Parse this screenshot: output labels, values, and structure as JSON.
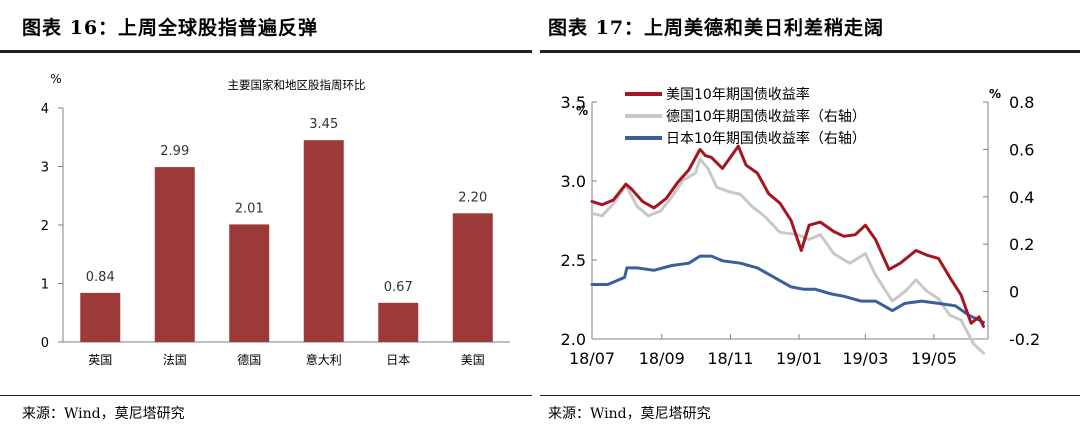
{
  "left_panel": {
    "figure_title": "图表 16：上周全球股指普遍反弹",
    "source": "来源：Wind，莫尼塔研究"
  },
  "right_panel": {
    "figure_title": "图表 17：上周美德和美日利差稍走阔",
    "source": "来源：Wind，莫尼塔研究"
  },
  "chart_data": [
    {
      "type": "bar",
      "title": "主要国家和地区股指周环比",
      "ylabel": "%",
      "ylim": [
        0,
        4
      ],
      "yticks": [
        "0",
        "1",
        "2",
        "3",
        "4"
      ],
      "categories": [
        "英国",
        "法国",
        "德国",
        "意大利",
        "日本",
        "美国"
      ],
      "values": [
        0.84,
        2.99,
        2.01,
        3.45,
        0.67,
        2.2
      ],
      "value_labels": [
        "0.84",
        "2.99",
        "2.01",
        "3.45",
        "0.67",
        "2.20"
      ],
      "bar_color": "#9c3a3a",
      "grid": false
    },
    {
      "type": "line",
      "ylabel_left": "%",
      "ylabel_right": "%",
      "ylim_left": [
        2.0,
        3.5
      ],
      "ylim_right": [
        -0.2,
        0.8
      ],
      "yticks_left": [
        "2.0",
        "2.5",
        "3.0",
        "3.5"
      ],
      "yticks_right": [
        "-0.2",
        "0",
        "0.2",
        "0.4",
        "0.6",
        "0.8"
      ],
      "xticks": [
        "18/07",
        "18/09",
        "18/11",
        "19/01",
        "19/03",
        "19/05"
      ],
      "legend_position": "top-left",
      "grid": false,
      "series": [
        {
          "name": "美国10年期国债收益率",
          "axis": "left",
          "color": "#a31621",
          "points": [
            [
              "2018-07-01",
              2.87
            ],
            [
              "2018-07-10",
              2.85
            ],
            [
              "2018-07-20",
              2.88
            ],
            [
              "2018-07-31",
              2.98
            ],
            [
              "2018-08-05",
              2.95
            ],
            [
              "2018-08-15",
              2.87
            ],
            [
              "2018-08-25",
              2.83
            ],
            [
              "2018-09-05",
              2.89
            ],
            [
              "2018-09-15",
              2.99
            ],
            [
              "2018-09-25",
              3.07
            ],
            [
              "2018-10-05",
              3.2
            ],
            [
              "2018-10-10",
              3.16
            ],
            [
              "2018-10-15",
              3.15
            ],
            [
              "2018-10-25",
              3.08
            ],
            [
              "2018-11-01",
              3.15
            ],
            [
              "2018-11-08",
              3.22
            ],
            [
              "2018-11-15",
              3.1
            ],
            [
              "2018-11-25",
              3.05
            ],
            [
              "2018-12-05",
              2.92
            ],
            [
              "2018-12-15",
              2.86
            ],
            [
              "2018-12-25",
              2.75
            ],
            [
              "2019-01-03",
              2.56
            ],
            [
              "2019-01-10",
              2.72
            ],
            [
              "2019-01-20",
              2.74
            ],
            [
              "2019-02-01",
              2.68
            ],
            [
              "2019-02-10",
              2.65
            ],
            [
              "2019-02-20",
              2.66
            ],
            [
              "2019-03-01",
              2.72
            ],
            [
              "2019-03-10",
              2.63
            ],
            [
              "2019-03-22",
              2.44
            ],
            [
              "2019-04-01",
              2.48
            ],
            [
              "2019-04-15",
              2.56
            ],
            [
              "2019-04-25",
              2.53
            ],
            [
              "2019-05-05",
              2.51
            ],
            [
              "2019-05-15",
              2.39
            ],
            [
              "2019-05-25",
              2.28
            ],
            [
              "2019-06-03",
              2.1
            ],
            [
              "2019-06-10",
              2.14
            ],
            [
              "2019-06-14",
              2.08
            ]
          ]
        },
        {
          "name": "德国10年期国债收益率（右轴）",
          "axis": "right",
          "color": "#c8c8c8",
          "points": [
            [
              "2018-07-01",
              0.33
            ],
            [
              "2018-07-10",
              0.32
            ],
            [
              "2018-07-20",
              0.37
            ],
            [
              "2018-07-31",
              0.45
            ],
            [
              "2018-08-10",
              0.36
            ],
            [
              "2018-08-20",
              0.32
            ],
            [
              "2018-08-31",
              0.34
            ],
            [
              "2018-09-10",
              0.4
            ],
            [
              "2018-09-20",
              0.47
            ],
            [
              "2018-10-01",
              0.5
            ],
            [
              "2018-10-05",
              0.56
            ],
            [
              "2018-10-12",
              0.52
            ],
            [
              "2018-10-20",
              0.44
            ],
            [
              "2018-11-01",
              0.42
            ],
            [
              "2018-11-10",
              0.41
            ],
            [
              "2018-11-20",
              0.36
            ],
            [
              "2018-12-01",
              0.32
            ],
            [
              "2018-12-15",
              0.25
            ],
            [
              "2018-12-31",
              0.24
            ],
            [
              "2019-01-10",
              0.22
            ],
            [
              "2019-01-20",
              0.24
            ],
            [
              "2019-02-01",
              0.16
            ],
            [
              "2019-02-15",
              0.12
            ],
            [
              "2019-03-01",
              0.16
            ],
            [
              "2019-03-10",
              0.07
            ],
            [
              "2019-03-25",
              -0.04
            ],
            [
              "2019-04-05",
              0.0
            ],
            [
              "2019-04-15",
              0.05
            ],
            [
              "2019-04-25",
              0.0
            ],
            [
              "2019-05-05",
              -0.03
            ],
            [
              "2019-05-15",
              -0.1
            ],
            [
              "2019-05-25",
              -0.12
            ],
            [
              "2019-06-05",
              -0.22
            ],
            [
              "2019-06-14",
              -0.26
            ]
          ]
        },
        {
          "name": "日本10年期国债收益率（右轴）",
          "axis": "right",
          "color": "#3b5f9a",
          "points": [
            [
              "2018-07-01",
              0.03
            ],
            [
              "2018-07-15",
              0.03
            ],
            [
              "2018-07-30",
              0.06
            ],
            [
              "2018-08-01",
              0.1
            ],
            [
              "2018-08-10",
              0.1
            ],
            [
              "2018-08-25",
              0.09
            ],
            [
              "2018-09-10",
              0.11
            ],
            [
              "2018-09-25",
              0.12
            ],
            [
              "2018-10-05",
              0.15
            ],
            [
              "2018-10-15",
              0.15
            ],
            [
              "2018-10-25",
              0.13
            ],
            [
              "2018-11-10",
              0.12
            ],
            [
              "2018-11-25",
              0.1
            ],
            [
              "2018-12-10",
              0.06
            ],
            [
              "2018-12-25",
              0.02
            ],
            [
              "2019-01-05",
              0.01
            ],
            [
              "2019-01-15",
              0.01
            ],
            [
              "2019-01-30",
              -0.01
            ],
            [
              "2019-02-10",
              -0.02
            ],
            [
              "2019-02-25",
              -0.04
            ],
            [
              "2019-03-10",
              -0.04
            ],
            [
              "2019-03-25",
              -0.08
            ],
            [
              "2019-04-05",
              -0.05
            ],
            [
              "2019-04-20",
              -0.04
            ],
            [
              "2019-05-05",
              -0.05
            ],
            [
              "2019-05-20",
              -0.06
            ],
            [
              "2019-06-01",
              -0.1
            ],
            [
              "2019-06-10",
              -0.12
            ],
            [
              "2019-06-14",
              -0.13
            ]
          ]
        }
      ]
    }
  ]
}
